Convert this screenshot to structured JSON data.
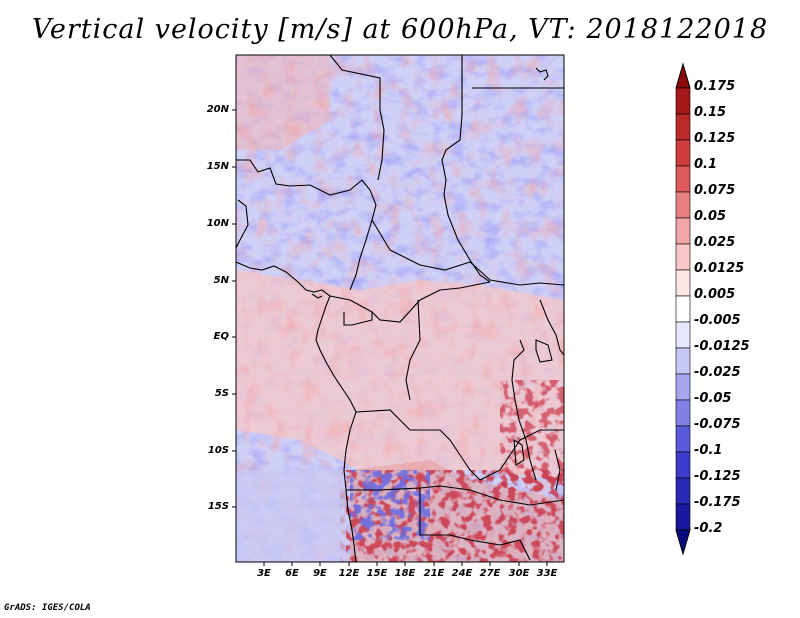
{
  "title": "Vertical velocity [m/s] at 600hPa, VT: 2018122018",
  "footer": "GrADS: IGES/COLA",
  "map": {
    "lat_labels": [
      "20N",
      "15N",
      "10N",
      "5N",
      "EQ",
      "5S",
      "10S",
      "15S"
    ],
    "lon_labels": [
      "3E",
      "6E",
      "9E",
      "12E",
      "15E",
      "18E",
      "21E",
      "24E",
      "27E",
      "30E",
      "33E"
    ],
    "field": "vertical velocity",
    "level": "600hPa",
    "units": "m/s"
  },
  "colorbar": {
    "labels": [
      "0.175",
      "0.15",
      "0.125",
      "0.1",
      "0.075",
      "0.05",
      "0.025",
      "0.0125",
      "0.005",
      "-0.005",
      "-0.0125",
      "-0.025",
      "-0.05",
      "-0.075",
      "-0.1",
      "-0.125",
      "-0.175",
      "-0.2"
    ],
    "colors": [
      "#8b0a0a",
      "#a51818",
      "#bd2a2a",
      "#d03c3c",
      "#df5a5a",
      "#e98080",
      "#f2a6a6",
      "#f8c8c8",
      "#fde6e6",
      "#ffffff",
      "#e6e6fd",
      "#c8c8f7",
      "#a6a6ef",
      "#8080e6",
      "#5a5adb",
      "#3c3ccc",
      "#2a2ab8",
      "#18189e",
      "#0a0a80"
    ]
  }
}
